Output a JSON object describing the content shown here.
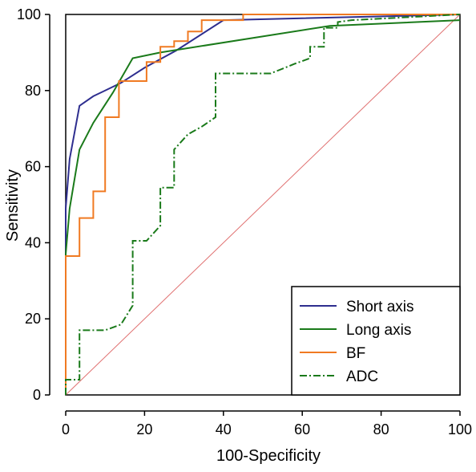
{
  "chart_data": {
    "type": "line",
    "title": "",
    "xlabel": "100-Specificity",
    "ylabel": "Sensitivity",
    "xlim": [
      0,
      100
    ],
    "ylim": [
      0,
      100
    ],
    "xticks": [
      0,
      20,
      40,
      60,
      80,
      100
    ],
    "yticks": [
      0,
      20,
      40,
      60,
      80,
      100
    ],
    "grid": false,
    "legend_position": "bottom-right",
    "reference_line": {
      "from": [
        0,
        0
      ],
      "to": [
        100,
        100
      ],
      "color": "#e07070"
    },
    "series": [
      {
        "name": "Short axis",
        "color": "#2e2e8f",
        "style": "solid",
        "x": [
          0,
          0,
          1,
          3.5,
          7,
          14,
          20,
          28,
          40,
          100
        ],
        "y": [
          0,
          49,
          62,
          76,
          78.5,
          82,
          86,
          90.5,
          98.5,
          100
        ]
      },
      {
        "name": "Long axis",
        "color": "#1a7a1a",
        "style": "solid",
        "x": [
          0,
          0,
          1,
          3.5,
          7,
          12,
          17,
          24,
          67,
          100
        ],
        "y": [
          0,
          37,
          49,
          64.5,
          71.5,
          79.5,
          88.5,
          90,
          97,
          98.5
        ]
      },
      {
        "name": "BF",
        "color": "#f07a22",
        "style": "solid",
        "x": [
          0,
          0,
          3.5,
          3.5,
          7,
          7,
          10,
          10,
          13.5,
          13.5,
          20.5,
          20.5,
          24,
          24,
          27.5,
          27.5,
          31,
          31,
          34.5,
          34.5,
          45,
          45,
          100
        ],
        "y": [
          0,
          36.5,
          36.5,
          46.5,
          46.5,
          53.5,
          53.5,
          73,
          73,
          82.5,
          82.5,
          87.5,
          87.5,
          91.5,
          91.5,
          93,
          93,
          95.5,
          95.5,
          98.5,
          98.5,
          100,
          100
        ]
      },
      {
        "name": "ADC",
        "color": "#1a7a1a",
        "style": "dashdot",
        "x": [
          0,
          0,
          3.5,
          3.5,
          10,
          14,
          17,
          17,
          20.5,
          24,
          24,
          27.5,
          27.5,
          31,
          34.5,
          38,
          38,
          41.5,
          52,
          58,
          62,
          62,
          65.5,
          65.5,
          69,
          69,
          72.5,
          100
        ],
        "y": [
          0,
          4,
          4,
          17,
          17,
          18.5,
          23.5,
          40.5,
          40.5,
          44.5,
          54.5,
          54.5,
          64.5,
          68.5,
          70.5,
          73,
          84.5,
          84.5,
          84.5,
          87,
          88.5,
          91.5,
          91.5,
          96.5,
          96.5,
          98,
          98.5,
          100
        ]
      }
    ]
  }
}
